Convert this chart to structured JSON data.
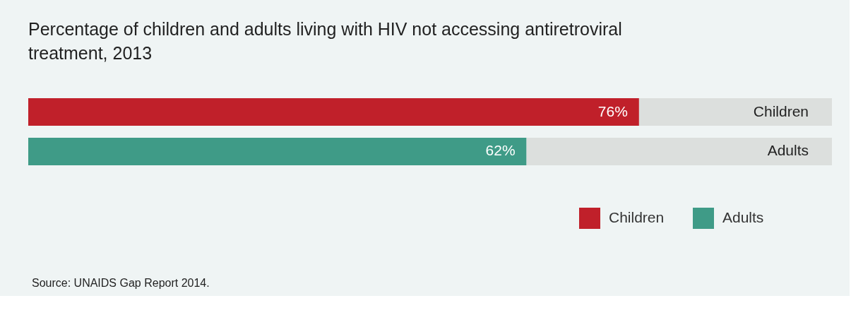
{
  "chart_data": {
    "type": "bar",
    "orientation": "horizontal",
    "stacked": true,
    "title": "Percentage of children and adults living with HIV not accessing antiretroviral treatment, 2013",
    "categories": [
      "Children",
      "Adults"
    ],
    "series": [
      {
        "name": "Children",
        "color": "#c0202a",
        "values": [
          76,
          null
        ],
        "value_labels": [
          "76%",
          null
        ]
      },
      {
        "name": "Adults",
        "color": "#3f9b87",
        "values": [
          null,
          62
        ],
        "value_labels": [
          null,
          "62%"
        ]
      },
      {
        "color": "#dcdfdd",
        "values": [
          24,
          38
        ]
      }
    ],
    "xlim": [
      0,
      100
    ],
    "tick_labels": false,
    "legend": "bottom right",
    "annotations": [
      "Source: UNAIDS Gap Report 2014."
    ]
  }
}
